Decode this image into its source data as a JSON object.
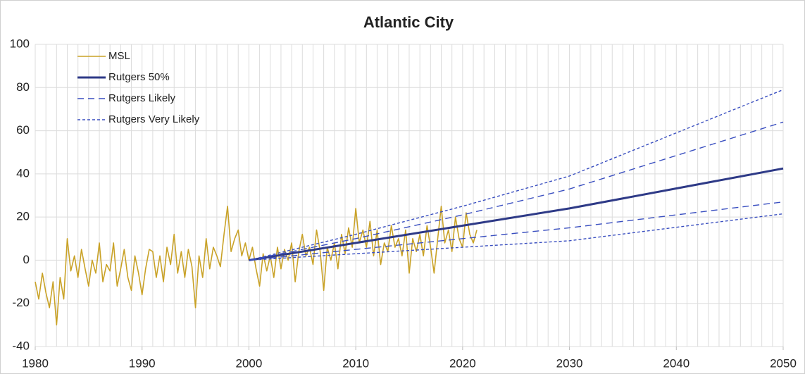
{
  "chart_data": {
    "type": "line",
    "title": "Atlantic City",
    "xlim": [
      1980,
      2050
    ],
    "xticks": [
      1980,
      1990,
      2000,
      2010,
      2020,
      2030,
      2040,
      2050
    ],
    "ylim": [
      -40,
      100
    ],
    "yticks": [
      -40,
      -20,
      0,
      20,
      40,
      60,
      80,
      100
    ],
    "grid": true,
    "legend": "top-left",
    "series": [
      {
        "name": "MSL",
        "color": "#c9a227",
        "line_style": "solid",
        "x": [
          1980,
          1980.33,
          1980.67,
          1981,
          1981.33,
          1981.67,
          1982,
          1982.33,
          1982.67,
          1983,
          1983.33,
          1983.67,
          1984,
          1984.33,
          1984.67,
          1985,
          1985.33,
          1985.67,
          1986,
          1986.33,
          1986.67,
          1987,
          1987.33,
          1987.67,
          1988,
          1988.33,
          1988.67,
          1989,
          1989.33,
          1989.67,
          1990,
          1990.33,
          1990.67,
          1991,
          1991.33,
          1991.67,
          1992,
          1992.33,
          1992.67,
          1993,
          1993.33,
          1993.67,
          1994,
          1994.33,
          1994.67,
          1995,
          1995.33,
          1995.67,
          1996,
          1996.33,
          1996.67,
          1997,
          1997.33,
          1997.67,
          1998,
          1998.33,
          1998.67,
          1999,
          1999.33,
          1999.67,
          2000,
          2000.33,
          2000.67,
          2001,
          2001.33,
          2001.67,
          2002,
          2002.33,
          2002.67,
          2003,
          2003.33,
          2003.67,
          2004,
          2004.33,
          2004.67,
          2005,
          2005.33,
          2005.67,
          2006,
          2006.33,
          2006.67,
          2007,
          2007.33,
          2007.67,
          2008,
          2008.33,
          2008.67,
          2009,
          2009.33,
          2009.67,
          2010,
          2010.33,
          2010.67,
          2011,
          2011.33,
          2011.67,
          2012,
          2012.33,
          2012.67,
          2013,
          2013.33,
          2013.67,
          2014,
          2014.33,
          2014.67,
          2015,
          2015.33,
          2015.67,
          2016,
          2016.33,
          2016.67,
          2017,
          2017.33,
          2017.67,
          2018,
          2018.33,
          2018.67,
          2019,
          2019.33,
          2019.67,
          2020,
          2020.33,
          2020.67,
          2021,
          2021.33
        ],
        "values": [
          -10,
          -18,
          -6,
          -15,
          -22,
          -10,
          -30,
          -8,
          -18,
          10,
          -5,
          2,
          -8,
          5,
          -4,
          -12,
          0,
          -6,
          8,
          -10,
          -2,
          -5,
          8,
          -12,
          -4,
          5,
          -8,
          -14,
          2,
          -6,
          -16,
          -4,
          5,
          4,
          -8,
          2,
          -10,
          6,
          -2,
          12,
          -6,
          4,
          -8,
          5,
          -3,
          -22,
          2,
          -8,
          10,
          -4,
          6,
          2,
          -3,
          12,
          25,
          4,
          10,
          14,
          2,
          8,
          0,
          6,
          -4,
          -12,
          3,
          -5,
          2,
          -8,
          6,
          -4,
          5,
          0,
          8,
          -10,
          4,
          12,
          2,
          6,
          -2,
          14,
          4,
          -14,
          6,
          0,
          8,
          -4,
          12,
          3,
          15,
          6,
          24,
          8,
          14,
          6,
          18,
          2,
          14,
          -2,
          8,
          4,
          16,
          6,
          10,
          2,
          14,
          -6,
          10,
          4,
          12,
          2,
          16,
          6,
          -6,
          10,
          25,
          8,
          14,
          4,
          20,
          10,
          6,
          22,
          12,
          8,
          14
        ]
      },
      {
        "name": "Rutgers 50%",
        "color": "#2e3a87",
        "line_style": "solid",
        "x": [
          2000,
          2010,
          2020,
          2030,
          2050
        ],
        "values": [
          0,
          8,
          16,
          24,
          42.5
        ]
      },
      {
        "name": "Rutgers Likely",
        "color": "#3a4fc0",
        "line_style": "dashed",
        "x": [
          2000,
          2010,
          2020,
          2030,
          2050
        ],
        "upper": [
          0,
          10,
          21,
          33,
          64
        ],
        "lower": [
          0,
          5,
          10,
          15,
          27
        ]
      },
      {
        "name": "Rutgers Very Likely",
        "color": "#3a4fc0",
        "line_style": "dotted",
        "x": [
          2000,
          2010,
          2020,
          2030,
          2050
        ],
        "upper": [
          0,
          12,
          25,
          39,
          79
        ],
        "lower": [
          0,
          3,
          6,
          9,
          21.5
        ]
      }
    ]
  }
}
